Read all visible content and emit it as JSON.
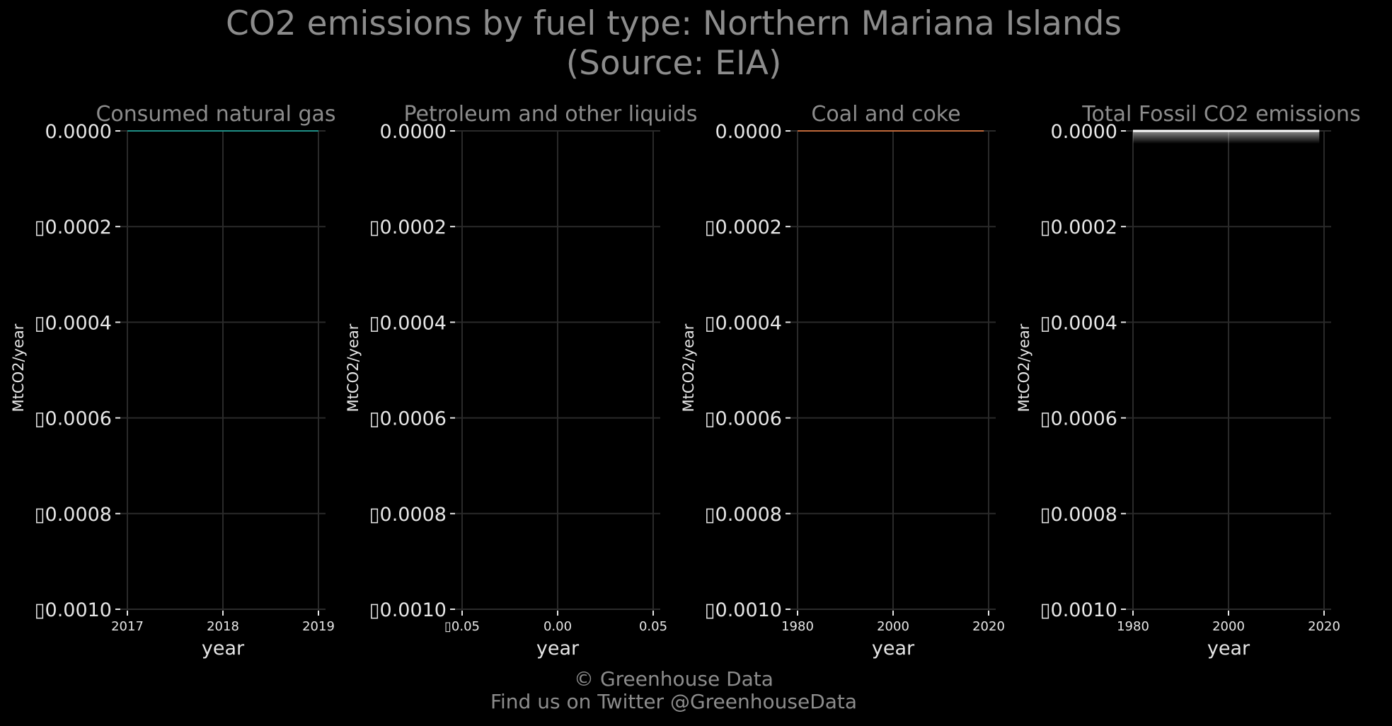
{
  "title_line1": "CO2 emissions by fuel type: Northern Mariana Islands",
  "title_line2": "(Source: EIA)",
  "footer_line1": "© Greenhouse Data",
  "footer_line2": "Find us on Twitter @GreenhouseData",
  "colors": {
    "background": "#000000",
    "grid": "#2a2a2a",
    "text_muted": "#8c8c8c",
    "text_bright": "#e6e6e6",
    "natural_gas": "#1f8f86",
    "petroleum": "#6e6e6e",
    "coal": "#c0683a",
    "total": "#ffffff"
  },
  "chart_data": [
    {
      "type": "line",
      "title": "Consumed natural gas",
      "xlabel": "year",
      "ylabel": "MtCO2/year",
      "x_ticks": [
        "2017",
        "2018",
        "2019"
      ],
      "xlim": [
        2017,
        2019
      ],
      "y_ticks": [
        "0.0000",
        "▯0.0002",
        "▯0.0004",
        "▯0.0006",
        "▯0.0008",
        "▯0.0010"
      ],
      "ylim": [
        0,
        -0.001
      ],
      "series": [
        {
          "x": [
            2017,
            2019
          ],
          "y": [
            0,
            0
          ],
          "color_key": "natural_gas"
        }
      ],
      "grid": true
    },
    {
      "type": "line",
      "title": "Petroleum and other liquids",
      "xlabel": "year",
      "ylabel": "MtCO2/year",
      "x_ticks": [
        "▯0.05",
        "0.00",
        "0.05"
      ],
      "xlim": [
        -0.05,
        0.05
      ],
      "y_ticks": [
        "0.0000",
        "▯0.0002",
        "▯0.0004",
        "▯0.0006",
        "▯0.0008",
        "▯0.0010"
      ],
      "ylim": [
        0,
        -0.001
      ],
      "series": [],
      "grid": true
    },
    {
      "type": "line",
      "title": "Coal and coke",
      "xlabel": "year",
      "ylabel": "MtCO2/year",
      "x_ticks": [
        "1980",
        "2000",
        "2020"
      ],
      "xlim": [
        1980,
        2020
      ],
      "y_ticks": [
        "0.0000",
        "▯0.0002",
        "▯0.0004",
        "▯0.0006",
        "▯0.0008",
        "▯0.0010"
      ],
      "ylim": [
        0,
        -0.001
      ],
      "series": [
        {
          "x": [
            1980,
            2019
          ],
          "y": [
            0,
            0
          ],
          "color_key": "coal"
        }
      ],
      "grid": true
    },
    {
      "type": "area",
      "title": "Total Fossil CO2 emissions",
      "xlabel": "year",
      "ylabel": "MtCO2/year",
      "x_ticks": [
        "1980",
        "2000",
        "2020"
      ],
      "xlim": [
        1980,
        2020
      ],
      "y_ticks": [
        "0.0000",
        "▯0.0002",
        "▯0.0004",
        "▯0.0006",
        "▯0.0008",
        "▯0.0010"
      ],
      "ylim": [
        0,
        -0.001
      ],
      "series": [
        {
          "x": [
            1980,
            2019
          ],
          "y": [
            0,
            0
          ],
          "color_key": "total"
        }
      ],
      "grid": true
    }
  ]
}
